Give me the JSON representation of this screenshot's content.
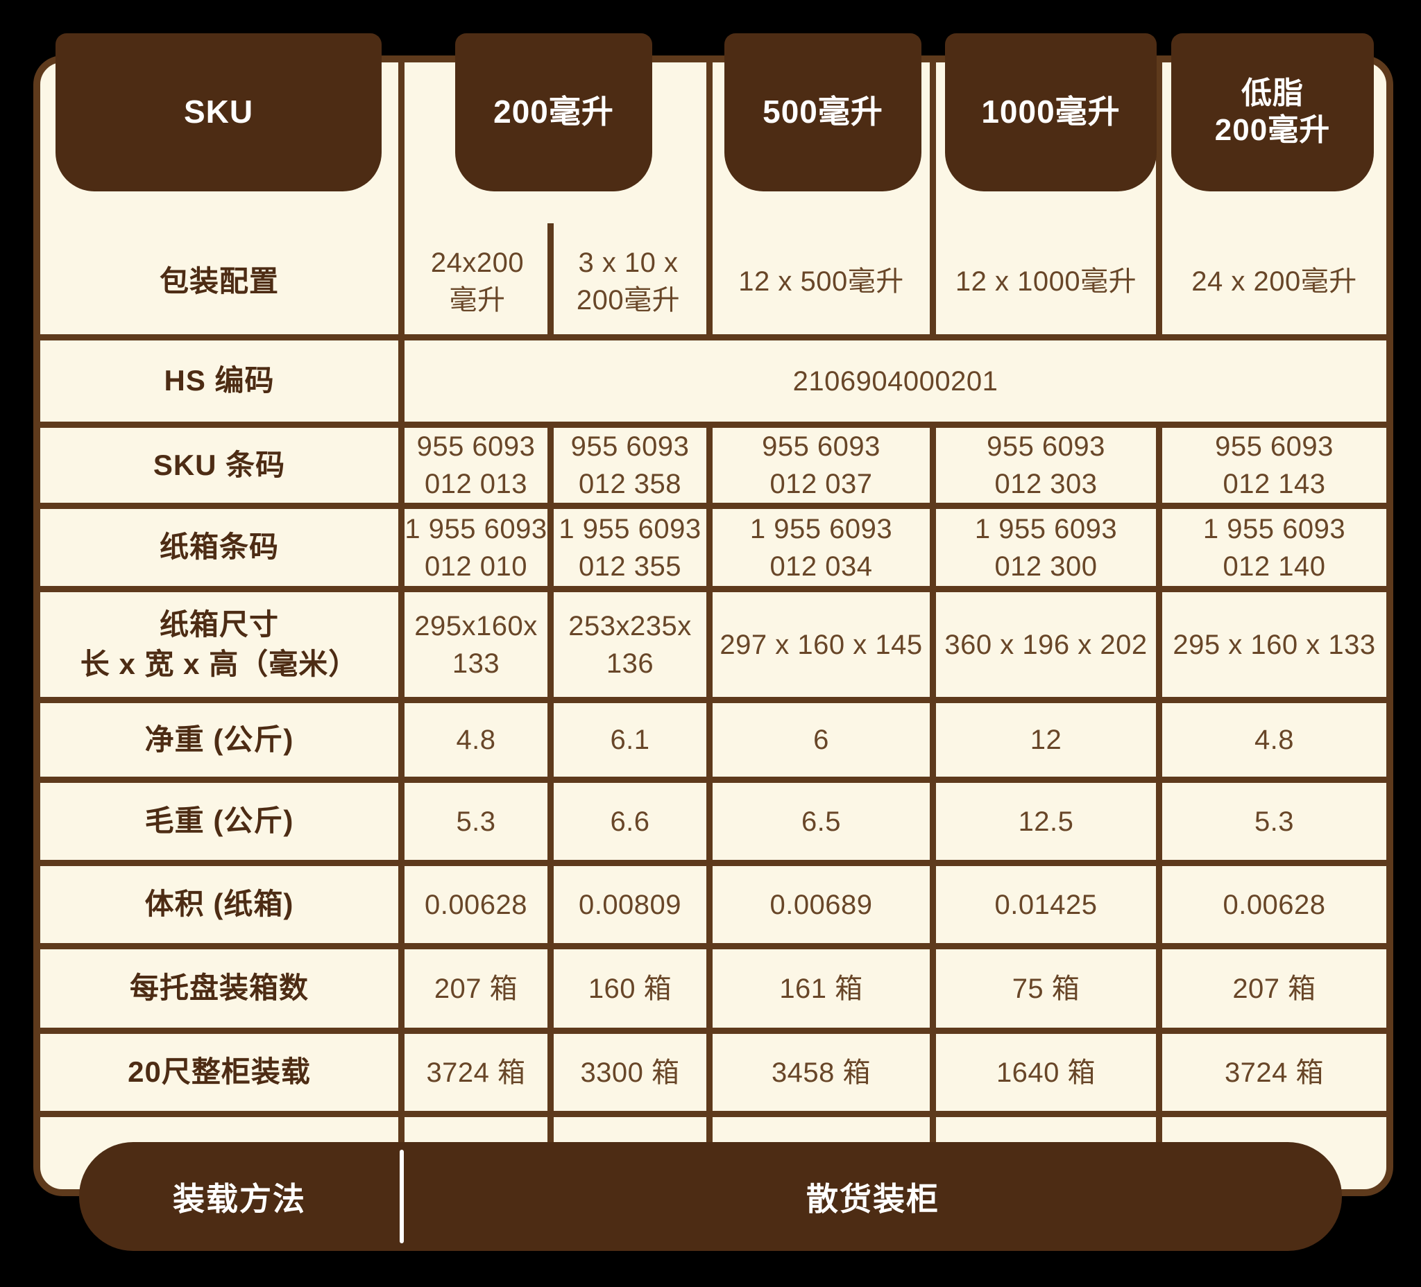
{
  "colors": {
    "background": "#000000",
    "cream": "#fcf7e6",
    "dark_brown": "#4d2c14",
    "line_brown": "#5e3a1c",
    "value_brown": "#684628",
    "white": "#ffffff"
  },
  "header_tabs": [
    {
      "id": "sku",
      "label": "SKU"
    },
    {
      "id": "200ml",
      "label": "200毫升"
    },
    {
      "id": "500ml",
      "label": "500毫升"
    },
    {
      "id": "1000ml",
      "label": "1000毫升"
    },
    {
      "id": "lowfat-200ml",
      "label": "低脂\n200毫升"
    }
  ],
  "rows": {
    "packaging": {
      "label": "包装配置",
      "values": [
        "24x200\n毫升",
        "3 x 10 x\n200毫升",
        "12 x 500毫升",
        "12 x 1000毫升",
        "24 x 200毫升"
      ]
    },
    "hs_code": {
      "label": "HS 编码",
      "value": "2106904000201"
    },
    "sku_barcode": {
      "label": "SKU 条码",
      "values": [
        "955 6093\n012 013",
        "955 6093\n012 358",
        "955 6093\n012 037",
        "955 6093\n012 303",
        "955 6093\n012 143"
      ]
    },
    "carton_barcode": {
      "label": "纸箱条码",
      "values": [
        "1 955 6093\n012 010",
        "1 955 6093\n012 355",
        "1 955 6093\n012 034",
        "1 955 6093\n012 300",
        "1 955 6093\n012 140"
      ]
    },
    "carton_size": {
      "label": "纸箱尺寸\n长 x 宽 x 高（毫米）",
      "values": [
        "295x160x\n133",
        "253x235x\n136",
        "297 x 160 x 145",
        "360 x 196 x 202",
        "295 x 160 x 133"
      ]
    },
    "net_weight": {
      "label": "净重 (公斤)",
      "values": [
        "4.8",
        "6.1",
        "6",
        "12",
        "4.8"
      ]
    },
    "gross_weight": {
      "label": "毛重 (公斤)",
      "values": [
        "5.3",
        "6.6",
        "6.5",
        "12.5",
        "5.3"
      ]
    },
    "volume": {
      "label": "体积 (纸箱)",
      "values": [
        "0.00628",
        "0.00809",
        "0.00689",
        "0.01425",
        "0.00628"
      ]
    },
    "cartons_per_pallet": {
      "label": "每托盘装箱数",
      "values": [
        "207 箱",
        "160 箱",
        "161 箱",
        "75 箱",
        "207 箱"
      ]
    },
    "container_20ft": {
      "label": "20尺整柜装载",
      "values": [
        "3724 箱",
        "3300 箱",
        "3458 箱",
        "1640 箱",
        "3724 箱"
      ]
    }
  },
  "footer": {
    "label": "装载方法",
    "value": "散货装柜"
  }
}
